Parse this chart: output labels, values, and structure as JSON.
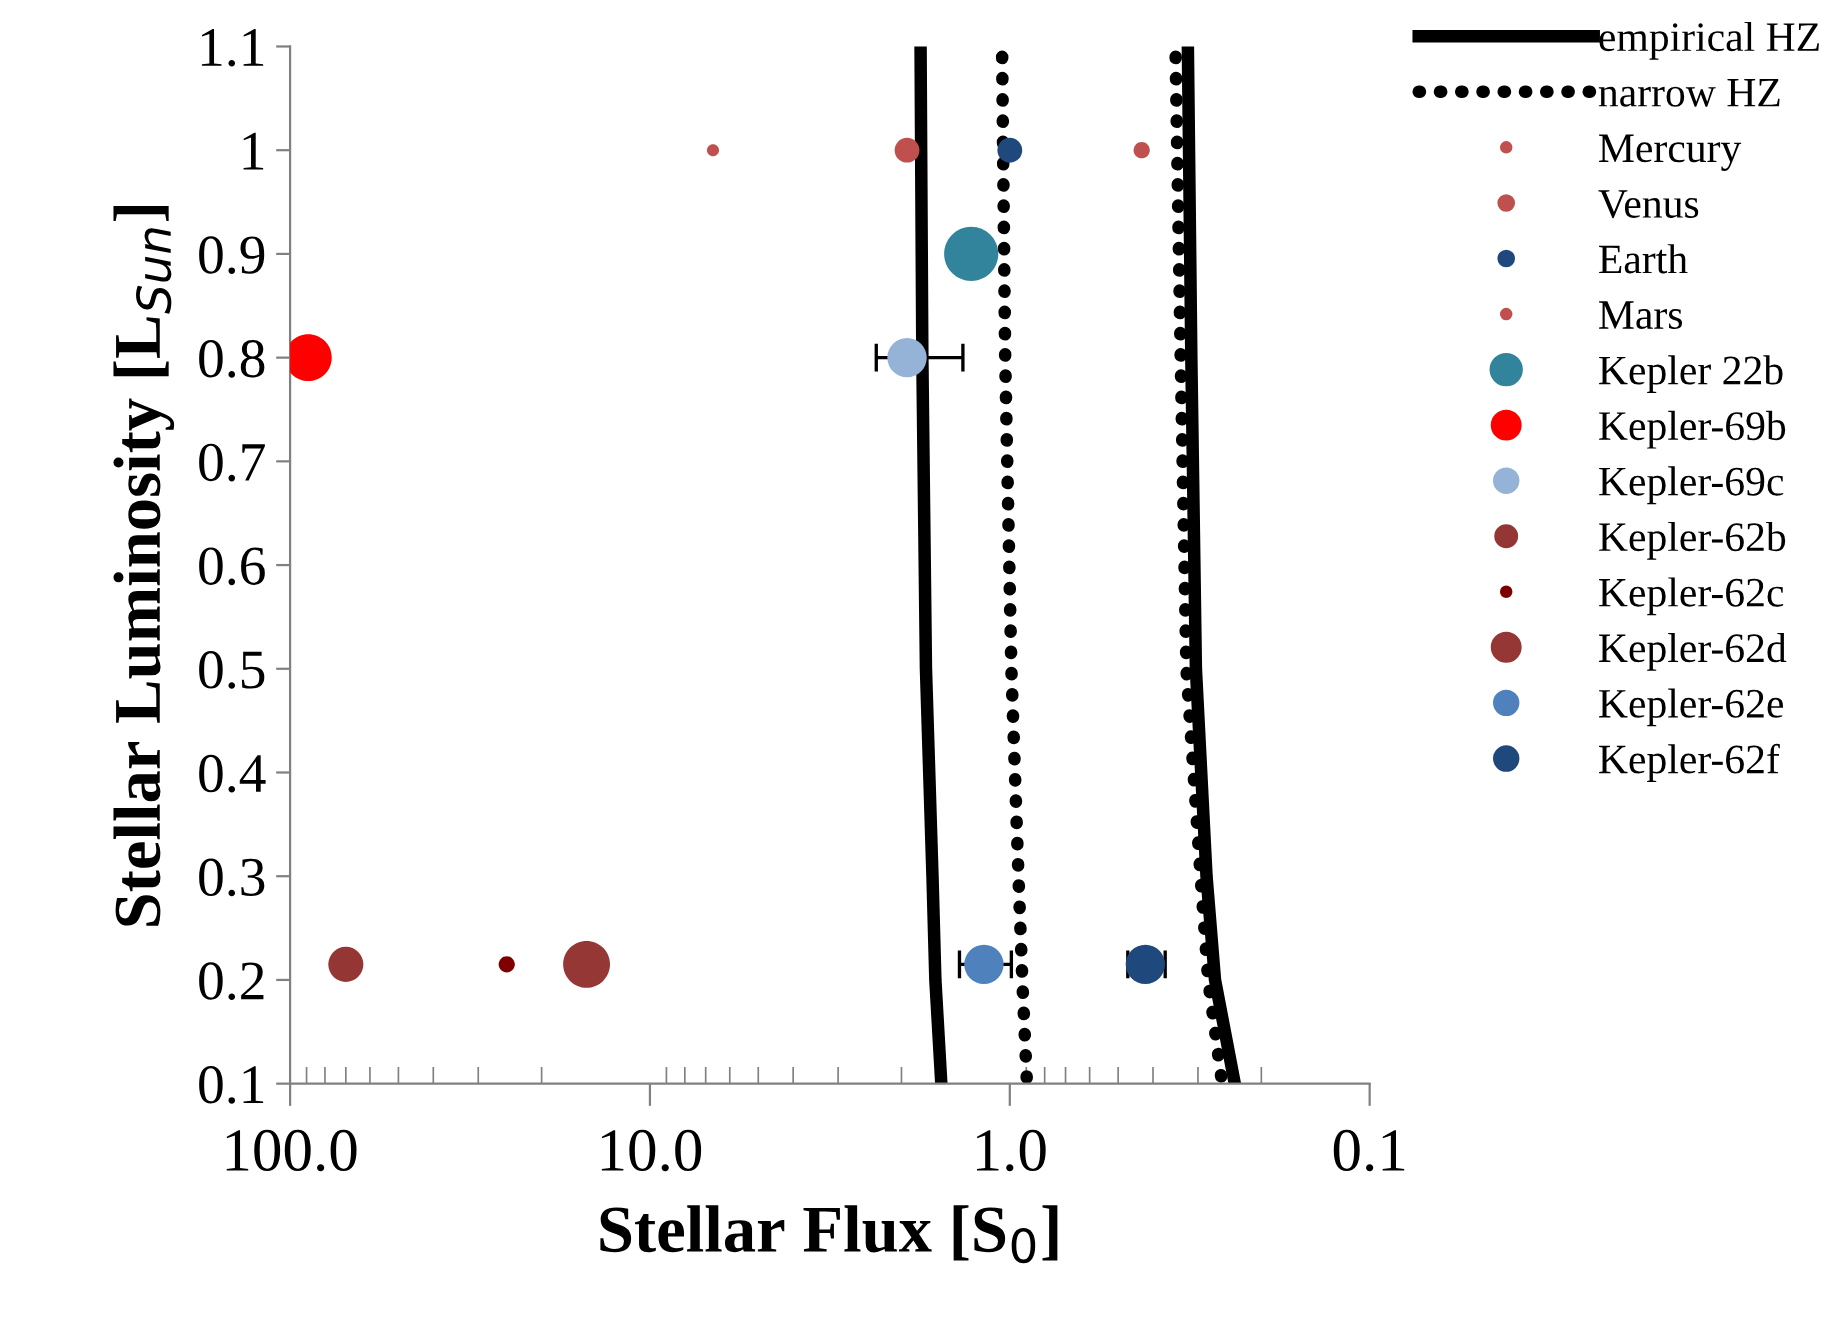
{
  "chart_data": {
    "type": "bubble",
    "xlabel": "Stellar Flux [S$_{0}$]",
    "ylabel": "Stellar Luminosity [L$_{Sun}$]",
    "log": "x",
    "xlim": [
      100,
      0.1
    ],
    "xticks": [
      {
        "value": 100,
        "label": "100.0"
      },
      {
        "value": 10,
        "label": "10.0"
      },
      {
        "value": 1,
        "label": "1.0"
      },
      {
        "value": 0.1,
        "label": "0.1"
      },
      {
        "value": 90,
        "label": null
      },
      {
        "value": 80,
        "label": null
      },
      {
        "value": 70,
        "label": null
      },
      {
        "value": 60,
        "label": null
      },
      {
        "value": 50,
        "label": null
      },
      {
        "value": 40,
        "label": null
      },
      {
        "value": 30,
        "label": null
      },
      {
        "value": 20,
        "label": null
      },
      {
        "value": 9,
        "label": null
      },
      {
        "value": 8,
        "label": null
      },
      {
        "value": 7,
        "label": null
      },
      {
        "value": 6,
        "label": null
      },
      {
        "value": 5,
        "label": null
      },
      {
        "value": 4,
        "label": null
      },
      {
        "value": 3,
        "label": null
      },
      {
        "value": 2,
        "label": null
      },
      {
        "value": 0.9,
        "label": null
      },
      {
        "value": 0.8,
        "label": null
      },
      {
        "value": 0.7,
        "label": null
      },
      {
        "value": 0.6,
        "label": null
      },
      {
        "value": 0.5,
        "label": null
      },
      {
        "value": 0.4,
        "label": null
      },
      {
        "value": 0.3,
        "label": null
      },
      {
        "value": 0.2,
        "label": null
      }
    ],
    "ylim": [
      0.1,
      1.1
    ],
    "yticks": [
      0.1,
      0.2,
      0.3,
      0.4,
      0.5,
      0.6,
      0.7,
      0.8,
      0.9,
      1,
      1.1
    ],
    "grid": false,
    "legend": "right",
    "marker": "circle",
    "series": [
      {
        "name": "empirical HZ",
        "type": "line",
        "marker": "none",
        "line_style": "solid",
        "color": "#000000",
        "x": [
          1.77,
          1.75,
          1.71,
          1.64,
          1.61,
          1.55,
          null,
          0.32,
          0.313,
          0.304,
          0.284,
          0.269,
          0.237
        ],
        "values": [
          1.1,
          0.8,
          0.5,
          0.3,
          0.2,
          0.1,
          null,
          1.1,
          0.8,
          0.5,
          0.3,
          0.2,
          0.1
        ]
      },
      {
        "name": "narrow HZ",
        "type": "line",
        "marker": "none",
        "line_style": "dotted",
        "color": "#000000",
        "x": [
          1.05,
          1.03,
          0.99,
          0.946,
          0.923,
          0.896,
          null,
          0.346,
          0.335,
          0.323,
          0.295,
          0.281,
          0.257
        ],
        "values": [
          1.09,
          0.8,
          0.5,
          0.3,
          0.2,
          0.1,
          null,
          1.09,
          0.8,
          0.5,
          0.3,
          0.2,
          0.1
        ]
      },
      {
        "name": "Mercury",
        "color": "#c0504d",
        "x": [
          6.68
        ],
        "values": [
          1
        ],
        "sizes": [
          0.05
        ]
      },
      {
        "name": "Venus",
        "color": "#c0504d",
        "x": [
          1.93
        ],
        "values": [
          1
        ],
        "sizes": [
          0.21
        ]
      },
      {
        "name": "Earth",
        "color": "#1f497d",
        "x": [
          1.0
        ],
        "values": [
          1
        ],
        "sizes": [
          0.21
        ]
      },
      {
        "name": "Mars",
        "color": "#c0504d",
        "x": [
          0.43
        ],
        "values": [
          1
        ],
        "sizes": [
          0.09
        ]
      },
      {
        "name": "Kepler 22b",
        "color": "#31849b",
        "x": [
          1.28
        ],
        "values": [
          0.9
        ],
        "sizes": [
          1
        ]
      },
      {
        "name": "Kepler-69b",
        "color": "#ff0000",
        "x": [
          89
        ],
        "values": [
          0.8
        ],
        "sizes": [
          0.75
        ]
      },
      {
        "name": "Kepler-69c",
        "color": "#95b3d7",
        "x": [
          1.93
        ],
        "values": [
          0.8
        ],
        "sizes": [
          0.53
        ],
        "xerrors": [
          [
            1.35,
            2.35
          ]
        ]
      },
      {
        "name": "Kepler-62b",
        "color": "#943634",
        "x": [
          70
        ],
        "values": [
          0.215
        ],
        "sizes": [
          0.42
        ]
      },
      {
        "name": "Kepler-62c",
        "color": "#7f0000",
        "x": [
          25
        ],
        "values": [
          0.215
        ],
        "sizes": [
          0.09
        ]
      },
      {
        "name": "Kepler-62d",
        "color": "#953735",
        "x": [
          15
        ],
        "values": [
          0.215
        ],
        "sizes": [
          0.75
        ]
      },
      {
        "name": "Kepler-62e",
        "color": "#4f81bd",
        "x": [
          1.18
        ],
        "values": [
          0.215
        ],
        "sizes": [
          0.53
        ],
        "xerrors": [
          [
            0.99,
            1.38
          ]
        ]
      },
      {
        "name": "Kepler-62f",
        "color": "#1f497d",
        "x": [
          0.42
        ],
        "values": [
          0.215
        ],
        "sizes": [
          0.53
        ],
        "xerrors": [
          [
            0.37,
            0.47
          ]
        ]
      }
    ]
  }
}
